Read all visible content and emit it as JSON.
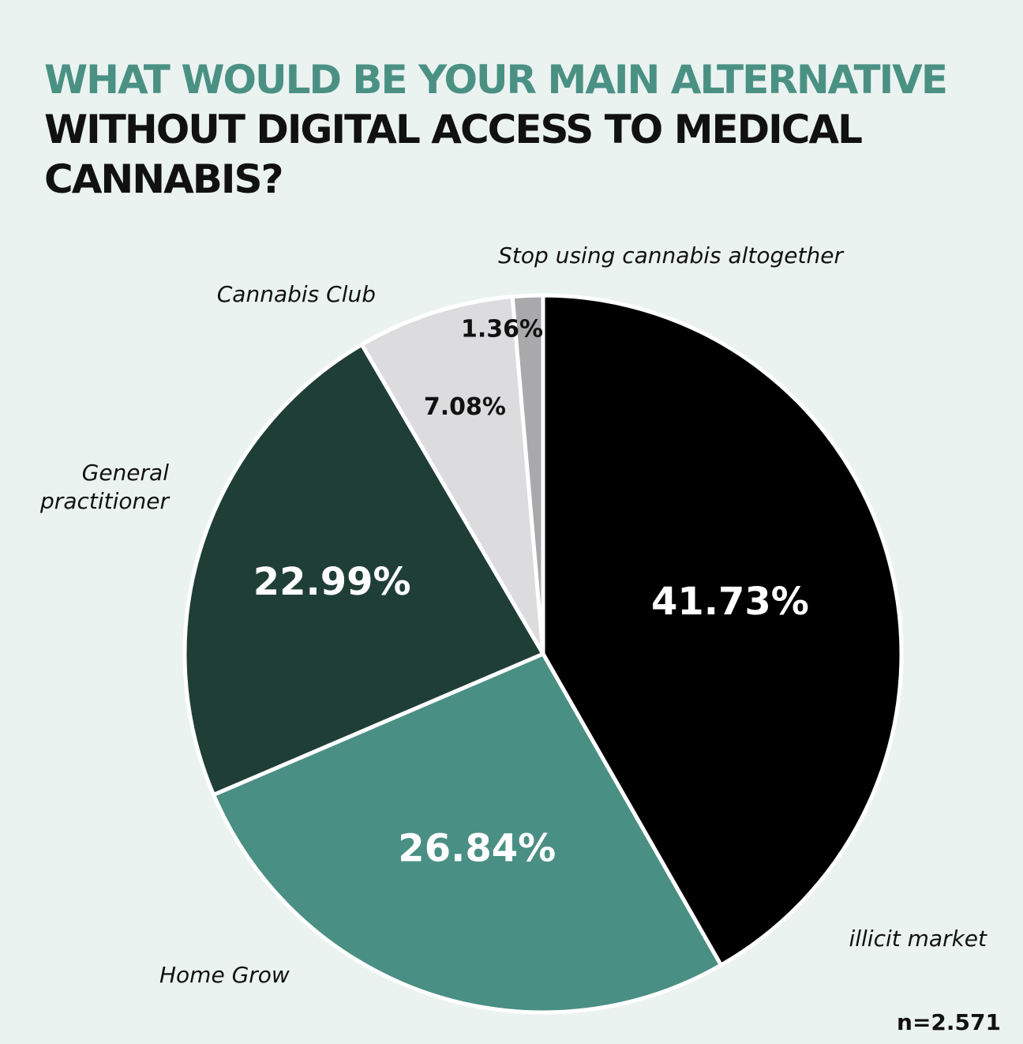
{
  "header": {
    "title_accent": "WHAT WOULD BE YOUR MAIN ALTERNATIVE",
    "title_rest": " WITHOUT DIGITAL ACCESS TO MEDICAL CANNABIS?"
  },
  "chart_data": {
    "type": "pie",
    "title": "WHAT WOULD BE YOUR MAIN ALTERNATIVE WITHOUT DIGITAL ACCESS TO MEDICAL CANNABIS?",
    "direction": "clockwise from 12 o'clock",
    "slices": [
      {
        "label": "illicit market",
        "value": 41.73,
        "value_label": "41.73%",
        "color": "#000000",
        "text_color": "#ffffff"
      },
      {
        "label": "Home Grow",
        "value": 26.84,
        "value_label": "26.84%",
        "color": "#4a8f83",
        "text_color": "#ffffff"
      },
      {
        "label": "General practitioner",
        "value": 22.99,
        "value_label": "22.99%",
        "color": "#1f3e36",
        "text_color": "#ffffff"
      },
      {
        "label": "Cannabis Club",
        "value": 7.08,
        "value_label": "7.08%",
        "color": "#dcdcde",
        "text_color": "#111111"
      },
      {
        "label": "Stop using cannabis altogether",
        "value": 1.36,
        "value_label": "1.36%",
        "color": "#a9a9ab",
        "text_color": "#111111"
      }
    ],
    "legend": "none (direct labels)"
  },
  "footer": {
    "sample_size": "n=2.571"
  }
}
